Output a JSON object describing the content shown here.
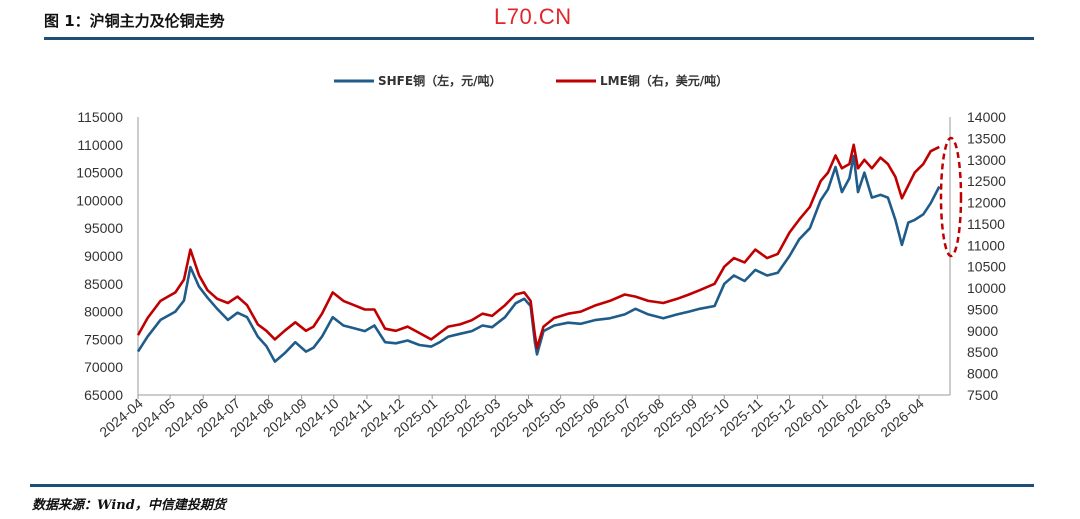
{
  "header": {
    "figure_title": "图 1：沪铜主力及伦铜走势",
    "watermark": "L70.CN"
  },
  "footer": {
    "source": "数据来源：Wind，中信建投期货"
  },
  "colors": {
    "shfe": "#1f5c8a",
    "lme": "#c00000",
    "rule": "#1f4e79",
    "highlight": "#c00000"
  },
  "chart_data": {
    "type": "line",
    "title": "",
    "legend_position": "top-center",
    "grid": false,
    "x_axis": {
      "type": "date",
      "tick_labels": [
        "2024-04",
        "2024-05",
        "2024-06",
        "2024-07",
        "2024-08",
        "2024-09",
        "2024-10",
        "2024-11",
        "2024-12",
        "2025-01",
        "2025-02",
        "2025-03",
        "2025-04",
        "2025-05",
        "2025-06",
        "2025-07",
        "2025-08",
        "2025-09",
        "2025-10",
        "2025-11",
        "2025-12",
        "2026-01",
        "2026-02",
        "2026-03",
        "2026-04"
      ],
      "range": [
        "2024-04-01",
        "2026-04-30"
      ]
    },
    "y_left": {
      "range": [
        65000,
        115000
      ],
      "ticks": [
        "115000",
        "110000",
        "105000",
        "100000",
        "95000",
        "90000",
        "85000",
        "80000",
        "75000",
        "70000",
        "65000"
      ]
    },
    "y_right": {
      "range": [
        7500,
        14000
      ],
      "ticks": [
        "14000",
        "13500",
        "13000",
        "12500",
        "12000",
        "11500",
        "11000",
        "10500",
        "10000",
        "9500",
        "9000",
        "8500",
        "8000",
        "7500"
      ]
    },
    "series": [
      {
        "name": "SHFE铜（左，元/吨）",
        "axis": "left",
        "points": [
          [
            "2024-04-01",
            72800
          ],
          [
            "2024-04-10",
            75500
          ],
          [
            "2024-04-22",
            78500
          ],
          [
            "2024-05-06",
            80000
          ],
          [
            "2024-05-14",
            82000
          ],
          [
            "2024-05-20",
            88000
          ],
          [
            "2024-05-28",
            84500
          ],
          [
            "2024-06-05",
            82500
          ],
          [
            "2024-06-14",
            80500
          ],
          [
            "2024-06-24",
            78500
          ],
          [
            "2024-07-03",
            79800
          ],
          [
            "2024-07-12",
            79000
          ],
          [
            "2024-07-22",
            75500
          ],
          [
            "2024-07-30",
            73800
          ],
          [
            "2024-08-07",
            71000
          ],
          [
            "2024-08-16",
            72500
          ],
          [
            "2024-08-26",
            74500
          ],
          [
            "2024-09-05",
            72800
          ],
          [
            "2024-09-12",
            73500
          ],
          [
            "2024-09-20",
            75500
          ],
          [
            "2024-09-30",
            79000
          ],
          [
            "2024-10-10",
            77500
          ],
          [
            "2024-10-20",
            77000
          ],
          [
            "2024-10-30",
            76500
          ],
          [
            "2024-11-08",
            77500
          ],
          [
            "2024-11-18",
            74500
          ],
          [
            "2024-11-28",
            74300
          ],
          [
            "2024-12-09",
            74800
          ],
          [
            "2024-12-20",
            74000
          ],
          [
            "2024-12-31",
            73700
          ],
          [
            "2025-01-08",
            74500
          ],
          [
            "2025-01-16",
            75500
          ],
          [
            "2025-01-27",
            76000
          ],
          [
            "2025-02-07",
            76500
          ],
          [
            "2025-02-17",
            77500
          ],
          [
            "2025-02-26",
            77200
          ],
          [
            "2025-03-10",
            79000
          ],
          [
            "2025-03-20",
            81500
          ],
          [
            "2025-03-28",
            82300
          ],
          [
            "2025-04-03",
            81000
          ],
          [
            "2025-04-07",
            74500
          ],
          [
            "2025-04-09",
            72300
          ],
          [
            "2025-04-15",
            76500
          ],
          [
            "2025-04-25",
            77500
          ],
          [
            "2025-05-08",
            78000
          ],
          [
            "2025-05-20",
            77800
          ],
          [
            "2025-06-03",
            78500
          ],
          [
            "2025-06-16",
            78800
          ],
          [
            "2025-06-30",
            79500
          ],
          [
            "2025-07-10",
            80500
          ],
          [
            "2025-07-22",
            79500
          ],
          [
            "2025-08-05",
            78800
          ],
          [
            "2025-08-18",
            79500
          ],
          [
            "2025-08-29",
            80000
          ],
          [
            "2025-09-08",
            80500
          ],
          [
            "2025-09-22",
            81000
          ],
          [
            "2025-10-01",
            85000
          ],
          [
            "2025-10-10",
            86500
          ],
          [
            "2025-10-20",
            85500
          ],
          [
            "2025-10-30",
            87500
          ],
          [
            "2025-11-10",
            86500
          ],
          [
            "2025-11-20",
            87000
          ],
          [
            "2025-12-01",
            90000
          ],
          [
            "2025-12-10",
            93000
          ],
          [
            "2025-12-20",
            95000
          ],
          [
            "2025-12-30",
            100000
          ],
          [
            "2026-01-06",
            102000
          ],
          [
            "2026-01-13",
            106000
          ],
          [
            "2026-01-19",
            101500
          ],
          [
            "2026-01-26",
            104000
          ],
          [
            "2026-01-30",
            108000
          ],
          [
            "2026-02-03",
            101500
          ],
          [
            "2026-02-09",
            105000
          ],
          [
            "2026-02-16",
            100500
          ],
          [
            "2026-02-24",
            101000
          ],
          [
            "2026-03-03",
            100500
          ],
          [
            "2026-03-10",
            96500
          ],
          [
            "2026-03-16",
            92000
          ],
          [
            "2026-03-22",
            96000
          ],
          [
            "2026-03-28",
            96500
          ],
          [
            "2026-04-05",
            97500
          ],
          [
            "2026-04-12",
            99500
          ],
          [
            "2026-04-20",
            102500
          ]
        ]
      },
      {
        "name": "LME铜（右，美元/吨）",
        "axis": "right",
        "points": [
          [
            "2024-04-01",
            8900
          ],
          [
            "2024-04-10",
            9300
          ],
          [
            "2024-04-22",
            9700
          ],
          [
            "2024-05-06",
            9900
          ],
          [
            "2024-05-14",
            10200
          ],
          [
            "2024-05-20",
            10900
          ],
          [
            "2024-05-28",
            10300
          ],
          [
            "2024-06-05",
            9950
          ],
          [
            "2024-06-14",
            9750
          ],
          [
            "2024-06-24",
            9650
          ],
          [
            "2024-07-03",
            9800
          ],
          [
            "2024-07-12",
            9600
          ],
          [
            "2024-07-22",
            9150
          ],
          [
            "2024-07-30",
            9000
          ],
          [
            "2024-08-07",
            8800
          ],
          [
            "2024-08-16",
            9000
          ],
          [
            "2024-08-26",
            9200
          ],
          [
            "2024-09-05",
            9000
          ],
          [
            "2024-09-12",
            9100
          ],
          [
            "2024-09-20",
            9400
          ],
          [
            "2024-09-30",
            9900
          ],
          [
            "2024-10-10",
            9700
          ],
          [
            "2024-10-20",
            9600
          ],
          [
            "2024-10-30",
            9500
          ],
          [
            "2024-11-08",
            9500
          ],
          [
            "2024-11-18",
            9050
          ],
          [
            "2024-11-28",
            9000
          ],
          [
            "2024-12-09",
            9100
          ],
          [
            "2024-12-20",
            8950
          ],
          [
            "2024-12-31",
            8800
          ],
          [
            "2025-01-08",
            8950
          ],
          [
            "2025-01-16",
            9100
          ],
          [
            "2025-01-27",
            9150
          ],
          [
            "2025-02-07",
            9250
          ],
          [
            "2025-02-17",
            9400
          ],
          [
            "2025-02-26",
            9350
          ],
          [
            "2025-03-10",
            9600
          ],
          [
            "2025-03-20",
            9850
          ],
          [
            "2025-03-28",
            9900
          ],
          [
            "2025-04-03",
            9700
          ],
          [
            "2025-04-07",
            8900
          ],
          [
            "2025-04-09",
            8600
          ],
          [
            "2025-04-15",
            9100
          ],
          [
            "2025-04-25",
            9300
          ],
          [
            "2025-05-08",
            9400
          ],
          [
            "2025-05-20",
            9450
          ],
          [
            "2025-06-03",
            9600
          ],
          [
            "2025-06-16",
            9700
          ],
          [
            "2025-06-30",
            9850
          ],
          [
            "2025-07-10",
            9800
          ],
          [
            "2025-07-22",
            9700
          ],
          [
            "2025-08-05",
            9650
          ],
          [
            "2025-08-18",
            9750
          ],
          [
            "2025-08-29",
            9850
          ],
          [
            "2025-09-08",
            9950
          ],
          [
            "2025-09-22",
            10100
          ],
          [
            "2025-10-01",
            10500
          ],
          [
            "2025-10-10",
            10700
          ],
          [
            "2025-10-20",
            10600
          ],
          [
            "2025-10-30",
            10900
          ],
          [
            "2025-11-10",
            10700
          ],
          [
            "2025-11-20",
            10800
          ],
          [
            "2025-12-01",
            11300
          ],
          [
            "2025-12-10",
            11600
          ],
          [
            "2025-12-20",
            11900
          ],
          [
            "2025-12-30",
            12500
          ],
          [
            "2026-01-06",
            12700
          ],
          [
            "2026-01-13",
            13100
          ],
          [
            "2026-01-19",
            12800
          ],
          [
            "2026-01-26",
            12900
          ],
          [
            "2026-01-30",
            13350
          ],
          [
            "2026-02-03",
            12800
          ],
          [
            "2026-02-09",
            13000
          ],
          [
            "2026-02-16",
            12800
          ],
          [
            "2026-02-24",
            13050
          ],
          [
            "2026-03-03",
            12900
          ],
          [
            "2026-03-10",
            12600
          ],
          [
            "2026-03-16",
            12100
          ],
          [
            "2026-03-22",
            12400
          ],
          [
            "2026-03-28",
            12700
          ],
          [
            "2026-04-05",
            12900
          ],
          [
            "2026-04-12",
            13200
          ],
          [
            "2026-04-20",
            13300
          ]
        ]
      }
    ],
    "annotations": [
      {
        "type": "dashed-ellipse",
        "color": "#c00000",
        "around": "latest values, 2026-04"
      }
    ]
  }
}
